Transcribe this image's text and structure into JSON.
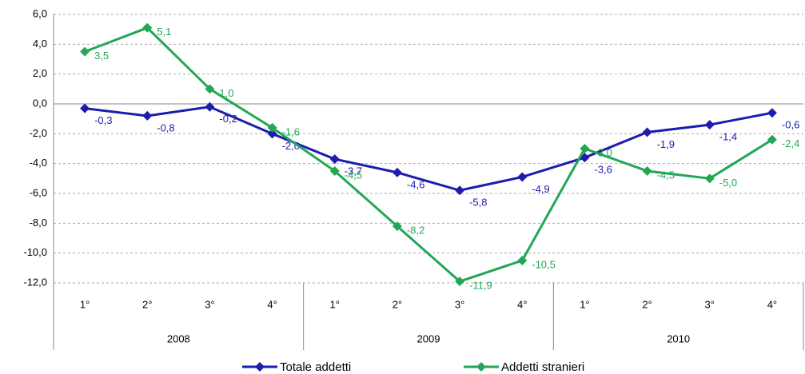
{
  "chart_data": {
    "type": "line",
    "categories": [
      "1°",
      "2°",
      "3°",
      "4°",
      "1°",
      "2°",
      "3°",
      "4°",
      "1°",
      "2°",
      "3°",
      "4°"
    ],
    "groups": [
      "2008",
      "2009",
      "2010"
    ],
    "series": [
      {
        "name": "Totale addetti",
        "color": "#1c1cae",
        "values": [
          -0.3,
          -0.8,
          -0.2,
          -2.0,
          -3.7,
          -4.6,
          -5.8,
          -4.9,
          -3.6,
          -1.9,
          -1.4,
          -0.6
        ],
        "value_labels": [
          "-0,3",
          "-0,8",
          "-0,2",
          "-2,0",
          "-3,7",
          "-4,6",
          "-5,8",
          "-4,9",
          "-3,6",
          "-1,9",
          "-1,4",
          "-0,6"
        ]
      },
      {
        "name": "Addetti stranieri",
        "color": "#21a756",
        "values": [
          3.5,
          5.1,
          1.0,
          -1.6,
          -4.5,
          -8.2,
          -11.9,
          -10.5,
          -3.0,
          -4.5,
          -5.0,
          -2.4
        ],
        "value_labels": [
          "3,5",
          "5,1",
          "1,0",
          "-1,6",
          "-4,5",
          "-8,2",
          "-11,9",
          "-10,5",
          "-3,0",
          "-4,5",
          "-5,0",
          "-2,4"
        ]
      }
    ],
    "ylim": [
      -12,
      6
    ],
    "yticks": [
      {
        "value": -12,
        "label": "-12,0"
      },
      {
        "value": -10,
        "label": "-10,0"
      },
      {
        "value": -8,
        "label": "-8,0"
      },
      {
        "value": -6,
        "label": "-6,0"
      },
      {
        "value": -4,
        "label": "-4,0"
      },
      {
        "value": -2,
        "label": "-2,0"
      },
      {
        "value": 0,
        "label": "0,0"
      },
      {
        "value": 2,
        "label": "2,0"
      },
      {
        "value": 4,
        "label": "4,0"
      },
      {
        "value": 6,
        "label": "6,0"
      }
    ],
    "grid": true,
    "legend": "bottom"
  }
}
